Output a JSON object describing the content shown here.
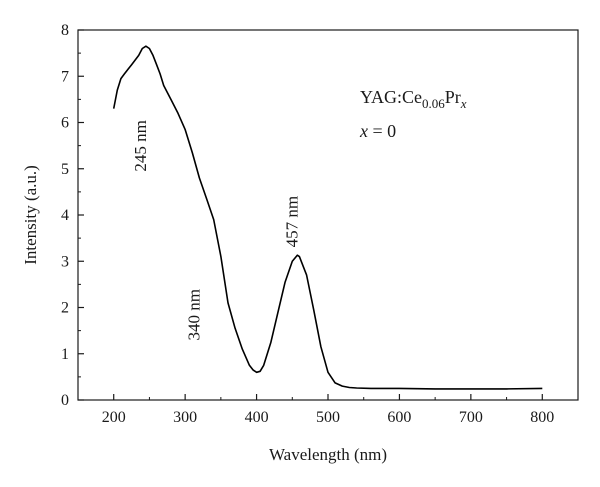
{
  "chart_data": {
    "type": "line",
    "title": "",
    "xlabel": "Wavelength (nm)",
    "ylabel": "Intensity (a.u.)",
    "xlim": [
      150,
      850
    ],
    "ylim": [
      0,
      8
    ],
    "x_ticks": [
      200,
      300,
      400,
      500,
      600,
      700,
      800
    ],
    "y_ticks": [
      0,
      1,
      2,
      3,
      4,
      5,
      6,
      7,
      8
    ],
    "grid": false,
    "series": [
      {
        "x": [
          200,
          205,
          210,
          215,
          220,
          225,
          230,
          235,
          240,
          245,
          250,
          255,
          260,
          265,
          270,
          280,
          290,
          300,
          310,
          320,
          330,
          340,
          350,
          360,
          370,
          380,
          390,
          395,
          400,
          405,
          410,
          420,
          430,
          440,
          450,
          457,
          460,
          470,
          480,
          490,
          500,
          510,
          520,
          530,
          540,
          560,
          600,
          650,
          700,
          750,
          800
        ],
        "y": [
          6.3,
          6.7,
          6.95,
          7.05,
          7.15,
          7.25,
          7.35,
          7.45,
          7.6,
          7.65,
          7.6,
          7.45,
          7.25,
          7.05,
          6.8,
          6.5,
          6.2,
          5.85,
          5.35,
          4.8,
          4.35,
          3.9,
          3.1,
          2.1,
          1.55,
          1.1,
          0.75,
          0.65,
          0.6,
          0.62,
          0.75,
          1.25,
          1.9,
          2.55,
          3.0,
          3.13,
          3.1,
          2.7,
          1.95,
          1.15,
          0.6,
          0.37,
          0.3,
          0.27,
          0.26,
          0.25,
          0.25,
          0.24,
          0.24,
          0.24,
          0.25
        ]
      }
    ],
    "annotations": [
      {
        "text": "245 nm",
        "x": 245,
        "y": 6.05,
        "rotation": -90
      },
      {
        "text": "340 nm",
        "x": 320,
        "y": 2.4,
        "rotation": -90
      },
      {
        "text": "457 nm",
        "x": 457,
        "y": 3.3,
        "rotation": -90
      }
    ],
    "legend": {
      "sample_base": "YAG:Ce",
      "sample_sub_ce": "0.06",
      "sample_pr": "Pr",
      "sample_sub_x": "x",
      "condition_var": "x",
      "condition_rest": " = 0"
    }
  }
}
